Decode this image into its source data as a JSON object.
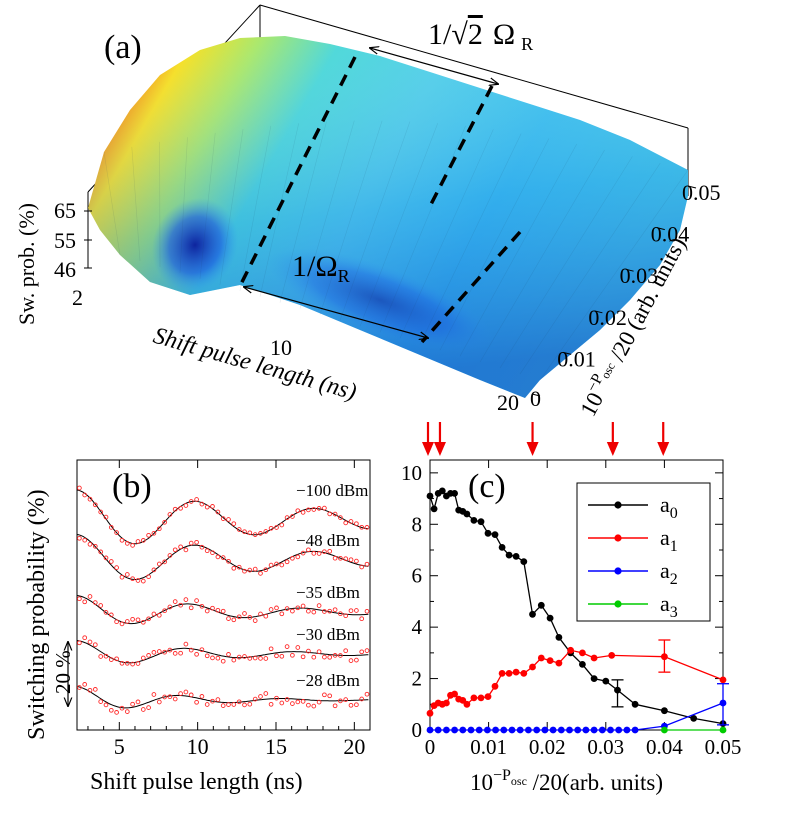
{
  "chart_data": [
    {
      "panel": "(a)",
      "type": "surface",
      "zlabel": "Sw. prob. (%)",
      "zticks": [
        "65",
        "55",
        "46"
      ],
      "xlabel": "Shift pulse length (ns)",
      "xticks": [
        "2",
        "10",
        "20"
      ],
      "ylabel_base": "10",
      "ylabel_exp": "−P",
      "ylabel_sub": "osc",
      "ylabel_tail": " /20 (arb. units)",
      "yticks": [
        "0",
        "0.01",
        "0.02",
        "0.03",
        "0.04",
        "0.05"
      ],
      "annotation_top_prefix": "1/",
      "annotation_top_sqrt": "2",
      "annotation_top_omega": "Ω",
      "annotation_top_sub": "R",
      "annotation_bottom_prefix": "1/",
      "annotation_bottom_omega": "Ω",
      "annotation_bottom_sub": "R"
    },
    {
      "panel": "(b)",
      "type": "line+scatter",
      "xlabel": "Shift pulse length (ns)",
      "ylabel": "Switching probability (%)",
      "scalebar_label": "20 %",
      "xlim": [
        2.3,
        21
      ],
      "xticks": [
        5,
        10,
        15,
        20
      ],
      "tick_labels": [
        "5",
        "10",
        "15",
        "20"
      ],
      "traces": [
        {
          "label": "−100 dBm",
          "offset": 0,
          "amp": 1.0,
          "decay": 16,
          "period": 7.6,
          "phase": 2.3
        },
        {
          "label": "−48 dBm",
          "offset": -23,
          "amp": 0.85,
          "decay": 14,
          "period": 7.6,
          "phase": 2.3
        },
        {
          "label": "−35 dBm",
          "offset": -46,
          "amp": 0.55,
          "decay": 10,
          "period": 7.2,
          "phase": 2.3
        },
        {
          "label": "−30 dBm",
          "offset": -68,
          "amp": 0.45,
          "decay": 8,
          "period": 7.0,
          "phase": 2.3
        },
        {
          "label": "−28 dBm",
          "offset": -88,
          "amp": 0.45,
          "decay": 6,
          "period": 6.6,
          "phase": 2.3
        }
      ]
    },
    {
      "panel": "(c)",
      "type": "line",
      "xlabel_base": "10",
      "xlabel_exp": "−P",
      "xlabel_sub": "osc",
      "xlabel_tail": " /20(arb. units)",
      "xlim": [
        0,
        0.05
      ],
      "ylim": [
        0,
        10.5
      ],
      "xticks": [
        0,
        0.01,
        0.02,
        0.03,
        0.04,
        0.05
      ],
      "xtick_labels": [
        "0",
        "0.01",
        "0.02",
        "0.03",
        "0.04",
        "0.05"
      ],
      "yticks": [
        0,
        2,
        4,
        6,
        8,
        10
      ],
      "ytick_labels": [
        "0",
        "2",
        "4",
        "6",
        "8",
        "10"
      ],
      "arrows_x": [
        0.0,
        0.0017,
        0.0175,
        0.0312,
        0.0398
      ],
      "legend_position": "top-right",
      "series": [
        {
          "name": "a",
          "sub": "0",
          "color": "#000000",
          "x": [
            0,
            0.0007,
            0.0014,
            0.0021,
            0.0028,
            0.0035,
            0.0042,
            0.0049,
            0.0056,
            0.0063,
            0.0075,
            0.0087,
            0.0099,
            0.0111,
            0.0123,
            0.0135,
            0.0147,
            0.016,
            0.0175,
            0.019,
            0.0205,
            0.022,
            0.024,
            0.026,
            0.028,
            0.03,
            0.032,
            0.035,
            0.04,
            0.045,
            0.05
          ],
          "y": [
            9.1,
            8.6,
            9.2,
            9.3,
            9.1,
            9.2,
            9.2,
            8.55,
            8.5,
            8.4,
            8.15,
            8.1,
            7.65,
            7.6,
            7.1,
            6.8,
            6.75,
            6.55,
            4.5,
            4.85,
            4.35,
            3.6,
            3.0,
            2.55,
            2.0,
            1.9,
            1.55,
            1.0,
            0.75,
            0.45,
            0.25
          ]
        },
        {
          "name": "a",
          "sub": "1",
          "color": "#ff0000",
          "x": [
            0,
            0.0007,
            0.0014,
            0.0021,
            0.0028,
            0.0035,
            0.0042,
            0.0049,
            0.0056,
            0.0063,
            0.0075,
            0.0087,
            0.0099,
            0.0111,
            0.0123,
            0.0135,
            0.0147,
            0.016,
            0.0175,
            0.019,
            0.0205,
            0.022,
            0.024,
            0.026,
            0.028,
            0.031,
            0.04,
            0.05
          ],
          "y": [
            0.65,
            0.95,
            1.05,
            1.0,
            1.05,
            1.35,
            1.4,
            1.2,
            1.15,
            1.0,
            1.25,
            1.25,
            1.3,
            1.7,
            2.2,
            2.2,
            2.25,
            2.2,
            2.45,
            2.8,
            2.7,
            2.6,
            3.1,
            3.0,
            2.8,
            2.9,
            2.85,
            1.95
          ]
        },
        {
          "name": "a",
          "sub": "2",
          "color": "#0000ff",
          "x": [
            0,
            0.0014,
            0.0028,
            0.0042,
            0.0056,
            0.007,
            0.0084,
            0.0098,
            0.0112,
            0.0126,
            0.014,
            0.0154,
            0.0168,
            0.0182,
            0.0196,
            0.021,
            0.0224,
            0.0238,
            0.0252,
            0.0266,
            0.028,
            0.0294,
            0.0308,
            0.0322,
            0.0336,
            0.035,
            0.04,
            0.05
          ],
          "y": [
            0,
            0,
            0,
            0,
            0,
            0,
            0,
            0,
            0,
            0,
            0,
            0,
            0,
            0,
            0,
            0,
            0,
            0,
            0,
            0,
            0,
            0,
            0,
            0,
            0,
            0,
            0.15,
            1.05
          ]
        },
        {
          "name": "a",
          "sub": "3",
          "color": "#00cc00",
          "x": [
            0.04,
            0.05
          ],
          "y": [
            0,
            0
          ]
        }
      ]
    }
  ]
}
